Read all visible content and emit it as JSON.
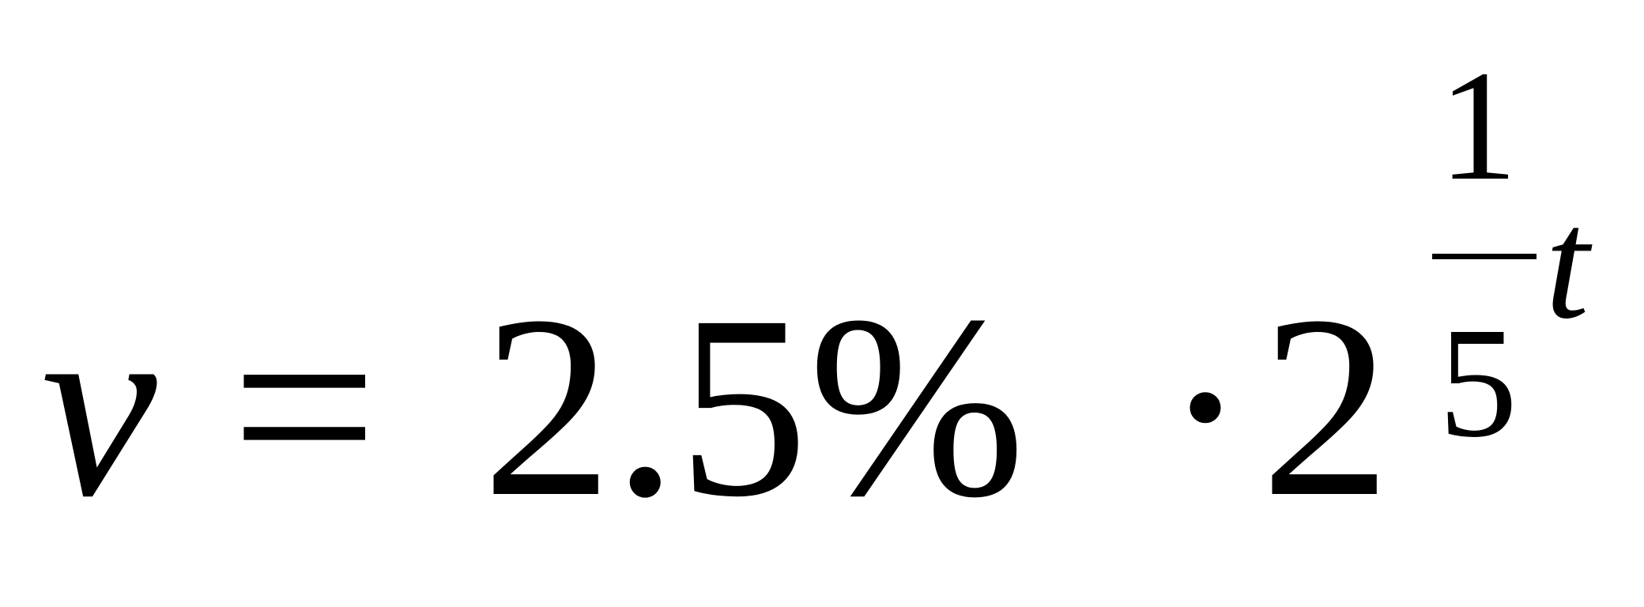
{
  "equation": {
    "lhs": "v",
    "equals": "=",
    "coefficient": "2.5%",
    "operator": "·",
    "base": "2",
    "exponent": {
      "numerator": "1",
      "denominator": "5",
      "variable": "t"
    }
  }
}
